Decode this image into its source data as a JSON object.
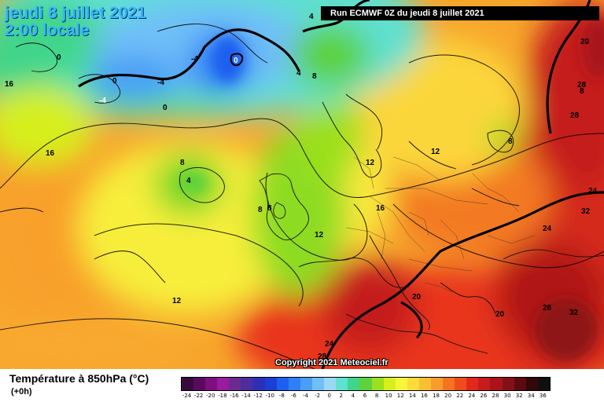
{
  "header": {
    "date": "jeudi 8 juillet 2021",
    "time": "2:00 locale",
    "run": "Run ECMWF 0Z du jeudi 8 juillet 2021"
  },
  "footer": {
    "title": "Température à 850hPa (°C)",
    "forecast": "(+0h)",
    "copyright": "Copyright 2021 Meteociel.fr"
  },
  "legend": {
    "ticks": [
      "-24",
      "-22",
      "-20",
      "-18",
      "-16",
      "-14",
      "-12",
      "-10",
      "-8",
      "-6",
      "-4",
      "-2",
      "0",
      "2",
      "4",
      "6",
      "8",
      "10",
      "12",
      "14",
      "16",
      "18",
      "20",
      "22",
      "24",
      "26",
      "28",
      "30",
      "32",
      "34",
      "36"
    ],
    "colors": [
      "#3a0a3d",
      "#5a0a5e",
      "#7d0f80",
      "#9b1aa0",
      "#6b2a8f",
      "#4b2d9e",
      "#2d2fb8",
      "#1a3fd4",
      "#1e5ef0",
      "#2f7ff5",
      "#4a9ef7",
      "#70bff8",
      "#9ad8f5",
      "#5fe0d0",
      "#3fd58a",
      "#5cd23c",
      "#9be01e",
      "#d6ef1c",
      "#f6f53a",
      "#fbdc3a",
      "#f9bf33",
      "#f89c2c",
      "#f47422",
      "#ee4c1d",
      "#e0281b",
      "#c51c1c",
      "#a8141a",
      "#86101a",
      "#5c0a10",
      "#320808",
      "#101010"
    ]
  },
  "map_labels": [
    "16",
    "16",
    "12",
    "12",
    "8",
    "4",
    "8",
    "8",
    "8",
    "8",
    "12",
    "16",
    "12",
    "20",
    "24",
    "28",
    "20",
    "28",
    "32",
    "24",
    "32",
    "28",
    "28",
    "24",
    "20",
    "0",
    "-4",
    "0",
    "-4",
    "0",
    "0",
    "-4",
    "4",
    "8",
    "4"
  ]
}
